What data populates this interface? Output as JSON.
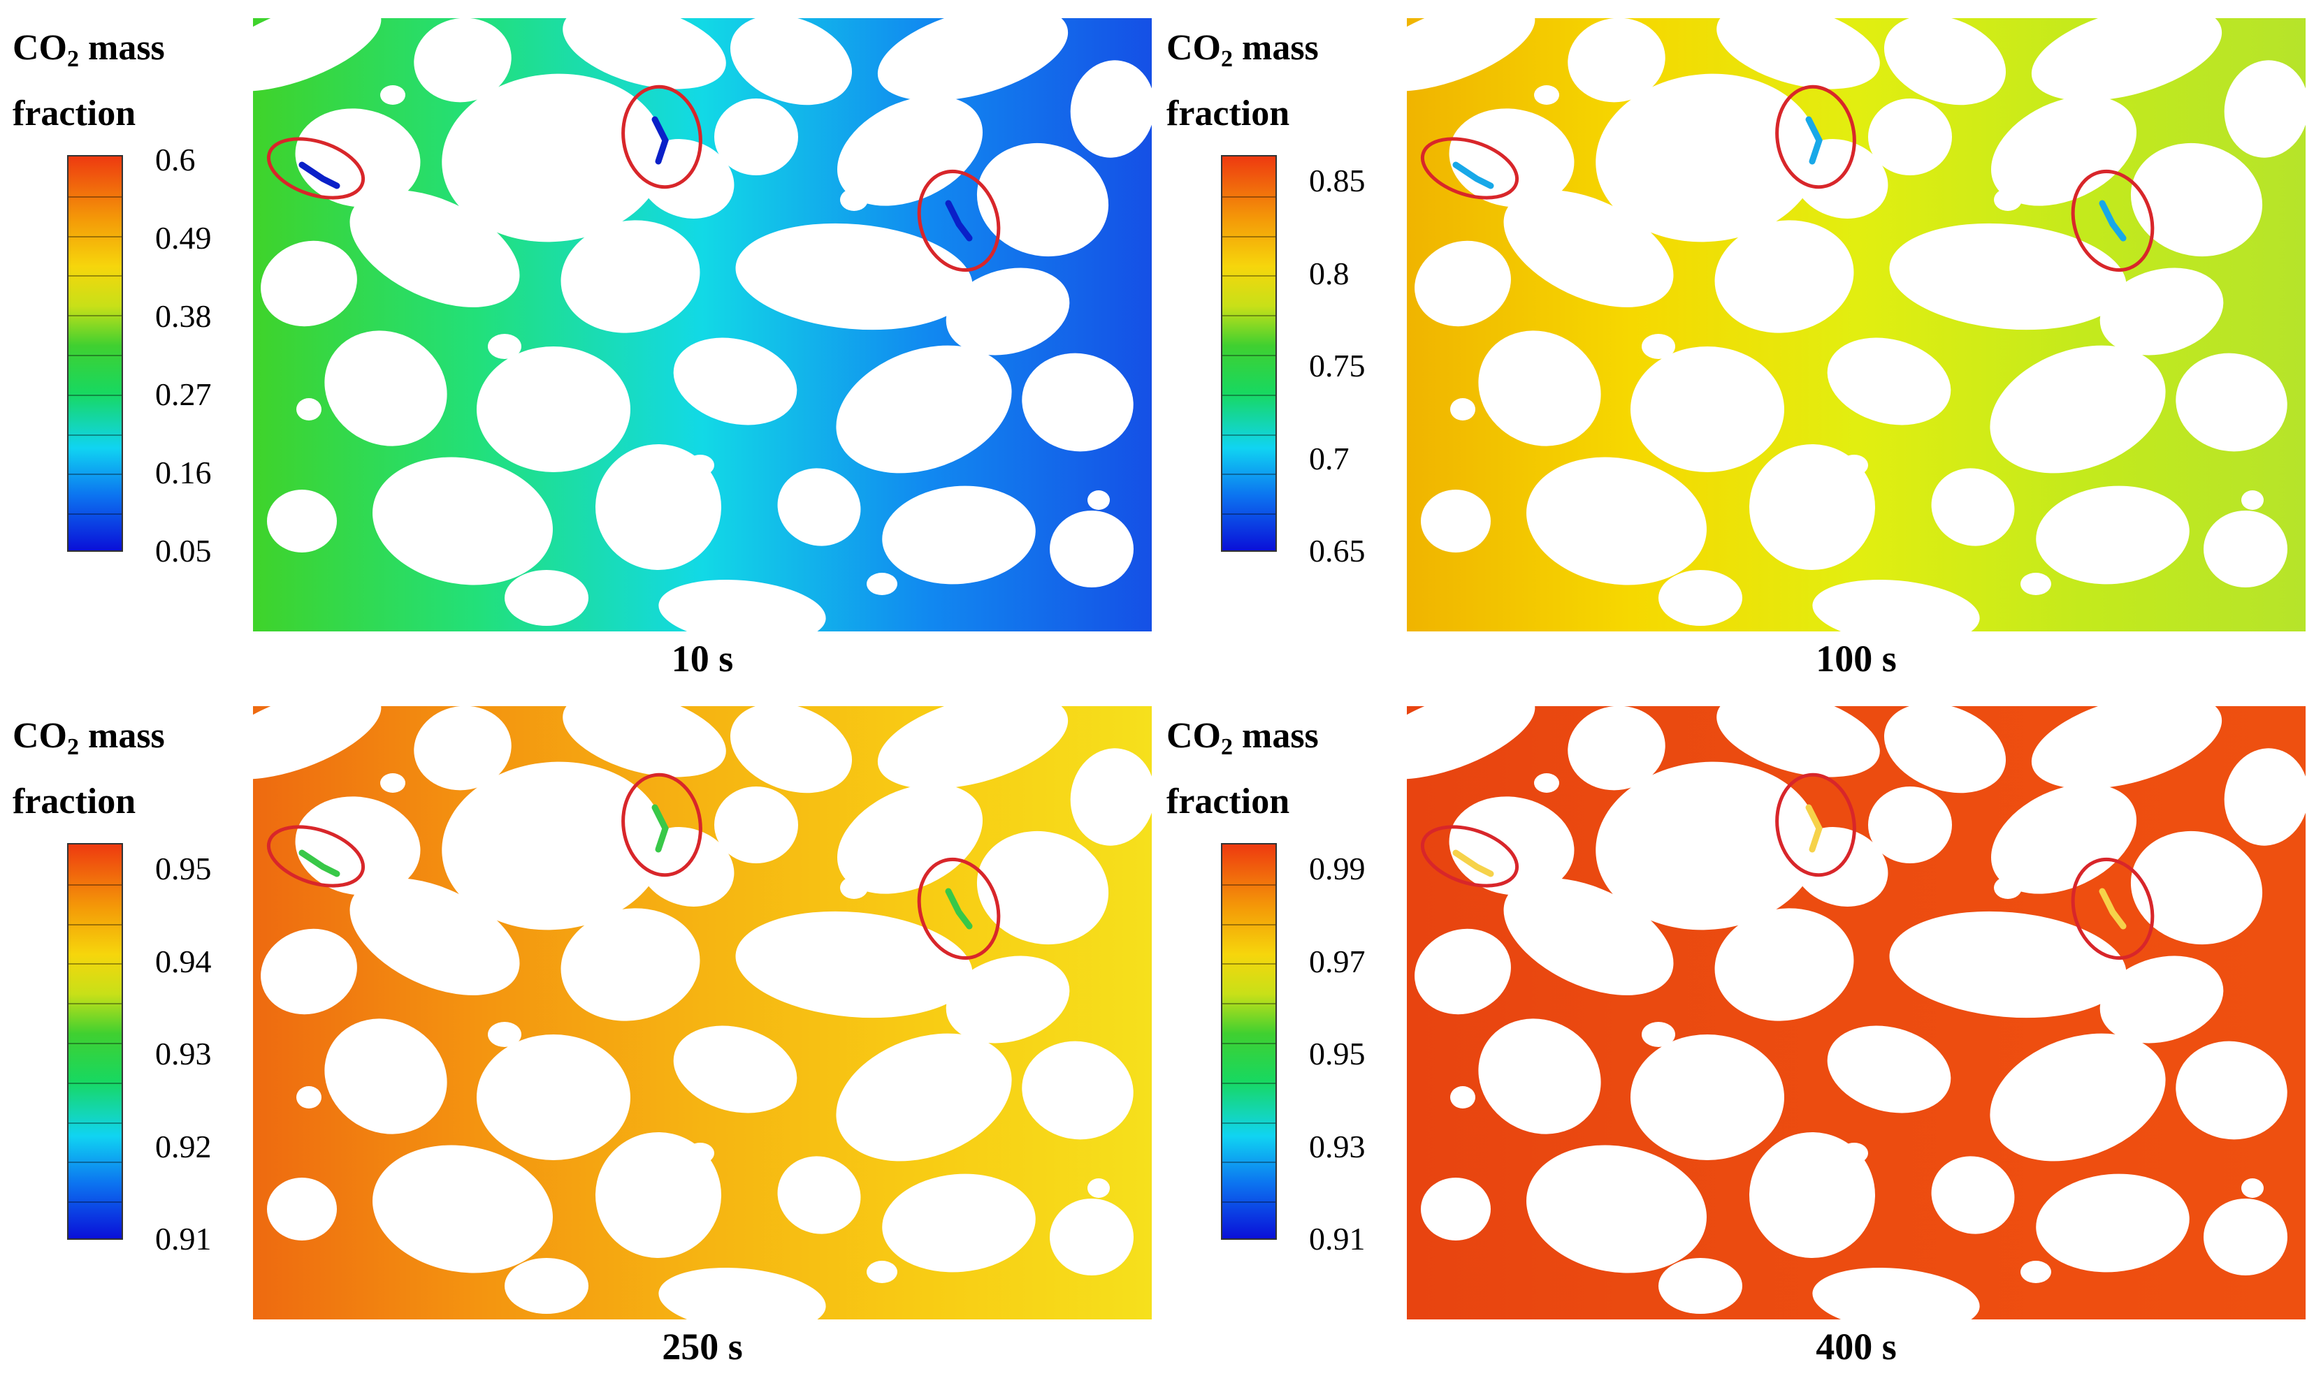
{
  "figure": {
    "panels": [
      {
        "time": "10 s",
        "legend": {
          "title": "CO",
          "subscript": "2",
          "title_rest": " mass",
          "title_line2": "fraction"
        },
        "ticks": [
          "0.6",
          "0.49",
          "0.38",
          "0.27",
          "0.16",
          "0.05"
        ],
        "colormap": "rainbow",
        "field_gradient": [
          "#3fd32a",
          "#22e07a",
          "#12d9e6",
          "#1189f0",
          "#1550e6"
        ]
      },
      {
        "time": "100 s",
        "legend": {
          "title": "CO",
          "subscript": "2",
          "title_rest": " mass",
          "title_line2": "fraction"
        },
        "ticks": [
          "0.85",
          "0.8",
          "0.75",
          "0.7",
          "0.65"
        ],
        "colormap": "rainbow",
        "field_gradient": [
          "#f0b400",
          "#f6d800",
          "#e2ee10",
          "#c4ea1c",
          "#b6e42a"
        ]
      },
      {
        "time": "250 s",
        "legend": {
          "title": "CO",
          "subscript": "2",
          "title_rest": " mass",
          "title_line2": "fraction"
        },
        "ticks": [
          "0.95",
          "0.94",
          "0.93",
          "0.92",
          "0.91"
        ],
        "colormap": "rainbow",
        "field_gradient": [
          "#ee6a10",
          "#f49410",
          "#f6b412",
          "#f8cc14",
          "#f6e01c"
        ]
      },
      {
        "time": "400 s",
        "legend": {
          "title": "CO",
          "subscript": "2",
          "title_rest": " mass",
          "title_line2": "fraction"
        },
        "ticks": [
          "0.99",
          "0.97",
          "0.95",
          "0.93",
          "0.91"
        ],
        "colormap": "rainbow",
        "field_gradient": [
          "#e84410",
          "#ea4a10",
          "#ec4c10",
          "#ee4e10",
          "#ee5010"
        ]
      }
    ],
    "highlight_color": "#d8262a"
  }
}
